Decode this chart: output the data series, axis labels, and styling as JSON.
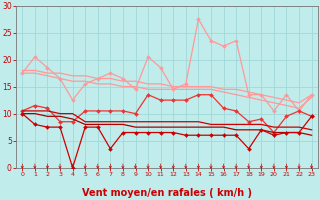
{
  "background_color": "#c0ecec",
  "grid_color": "#a0d8d8",
  "xlabel": "Vent moyen/en rafales ( km/h )",
  "xlabel_color": "#cc0000",
  "xlabel_fontsize": 7,
  "tick_color": "#cc0000",
  "xlim": [
    -0.5,
    23.5
  ],
  "ylim": [
    0,
    30
  ],
  "yticks": [
    0,
    5,
    10,
    15,
    20,
    25,
    30
  ],
  "xticks": [
    0,
    1,
    2,
    3,
    4,
    5,
    6,
    7,
    8,
    9,
    10,
    11,
    12,
    13,
    14,
    15,
    16,
    17,
    18,
    19,
    20,
    21,
    22,
    23
  ],
  "series": [
    {
      "label": "rafales_max",
      "color": "#ff9999",
      "linewidth": 0.9,
      "marker": "D",
      "markersize": 2.0,
      "data": [
        17.5,
        20.5,
        18.5,
        16.5,
        12.5,
        15.5,
        16.5,
        17.5,
        16.5,
        14.5,
        20.5,
        18.5,
        14.5,
        15.5,
        27.5,
        23.5,
        22.5,
        23.5,
        13.5,
        13.5,
        10.5,
        13.5,
        10.5,
        13.5
      ]
    },
    {
      "label": "rafales_trend1",
      "color": "#ff9999",
      "linewidth": 0.9,
      "marker": null,
      "markersize": 0,
      "data": [
        18.0,
        18.0,
        17.5,
        17.5,
        17.0,
        17.0,
        16.5,
        16.5,
        16.0,
        16.0,
        15.5,
        15.5,
        15.0,
        15.0,
        15.0,
        15.0,
        14.5,
        14.5,
        14.0,
        13.5,
        13.0,
        12.5,
        12.0,
        13.5
      ]
    },
    {
      "label": "rafales_trend2",
      "color": "#ff9999",
      "linewidth": 0.9,
      "marker": null,
      "markersize": 0,
      "data": [
        17.5,
        17.5,
        17.0,
        16.5,
        16.0,
        16.0,
        15.5,
        15.5,
        15.0,
        15.0,
        14.5,
        14.5,
        14.5,
        14.5,
        14.5,
        14.5,
        14.0,
        13.5,
        13.0,
        12.5,
        12.0,
        11.5,
        11.0,
        13.0
      ]
    },
    {
      "label": "vent_max_marked",
      "color": "#ee3333",
      "linewidth": 0.9,
      "marker": "D",
      "markersize": 2.0,
      "data": [
        10.5,
        11.5,
        11.0,
        8.5,
        8.5,
        10.5,
        10.5,
        10.5,
        10.5,
        10.0,
        13.5,
        12.5,
        12.5,
        12.5,
        13.5,
        13.5,
        11.0,
        10.5,
        8.5,
        9.0,
        6.5,
        9.5,
        10.5,
        9.5
      ]
    },
    {
      "label": "vent_moy_flat",
      "color": "#cc0000",
      "linewidth": 0.9,
      "marker": null,
      "markersize": 0,
      "data": [
        10.5,
        10.5,
        10.5,
        10.0,
        10.0,
        8.5,
        8.5,
        8.5,
        8.5,
        8.5,
        8.5,
        8.5,
        8.5,
        8.5,
        8.5,
        8.0,
        8.0,
        8.0,
        8.0,
        8.0,
        7.5,
        7.5,
        7.5,
        7.0
      ]
    },
    {
      "label": "vent_moy_flat2",
      "color": "#aa0000",
      "linewidth": 0.9,
      "marker": null,
      "markersize": 0,
      "data": [
        10.0,
        10.0,
        9.5,
        9.5,
        9.0,
        8.0,
        8.0,
        8.0,
        8.0,
        7.5,
        7.5,
        7.5,
        7.5,
        7.5,
        7.5,
        7.5,
        7.5,
        7.0,
        7.0,
        7.0,
        6.5,
        6.5,
        6.5,
        6.0
      ]
    },
    {
      "label": "vent_min_marked",
      "color": "#cc0000",
      "linewidth": 0.9,
      "marker": "D",
      "markersize": 2.0,
      "data": [
        10.0,
        8.0,
        7.5,
        7.5,
        0.0,
        7.5,
        7.5,
        3.5,
        6.5,
        6.5,
        6.5,
        6.5,
        6.5,
        6.0,
        6.0,
        6.0,
        6.0,
        6.0,
        3.5,
        7.0,
        6.0,
        6.5,
        6.5,
        9.5
      ]
    }
  ]
}
